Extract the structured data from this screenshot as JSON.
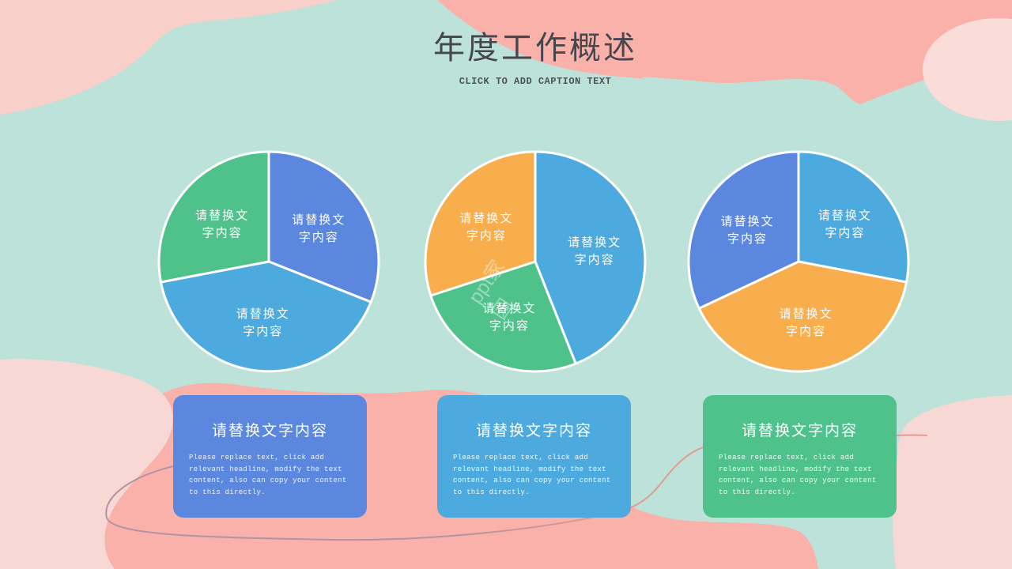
{
  "slide": {
    "title": "年度工作概述",
    "subtitle": "CLICK TO ADD CAPTION TEXT",
    "watermark": "ppt家园"
  },
  "pie_label": "请替换文\n字内容",
  "chart_data": [
    {
      "type": "pie",
      "title": "",
      "legend": "none",
      "start_angle_deg": 0,
      "segments": [
        {
          "label": "请替换文字内容",
          "value": 31,
          "color": "#5B87DE"
        },
        {
          "label": "请替换文字内容",
          "value": 41,
          "color": "#4DAADF"
        },
        {
          "label": "请替换文字内容",
          "value": 28,
          "color": "#4FC28C"
        }
      ]
    },
    {
      "type": "pie",
      "title": "",
      "legend": "none",
      "start_angle_deg": 0,
      "segments": [
        {
          "label": "请替换文字内容",
          "value": 44,
          "color": "#4DAADF"
        },
        {
          "label": "请替换文字内容",
          "value": 26,
          "color": "#4FC28C"
        },
        {
          "label": "请替换文字内容",
          "value": 30,
          "color": "#F9AE4D"
        }
      ]
    },
    {
      "type": "pie",
      "title": "",
      "legend": "none",
      "start_angle_deg": 0,
      "segments": [
        {
          "label": "请替换文字内容",
          "value": 28,
          "color": "#4DAADF"
        },
        {
          "label": "请替换文字内容",
          "value": 40,
          "color": "#F9AE4D"
        },
        {
          "label": "请替换文字内容",
          "value": 32,
          "color": "#5B87DE"
        }
      ]
    }
  ],
  "cards": [
    {
      "title": "请替换文字内容",
      "color": "#5B87DE",
      "body": "Please replace text, click add\nrelevant headline, modify the text\ncontent, also can copy your content\nto this directly."
    },
    {
      "title": "请替换文字内容",
      "color": "#4DAADF",
      "body": "Please replace text, click add\nrelevant headline, modify the text\ncontent, also can copy your content\nto this directly."
    },
    {
      "title": "请替换文字内容",
      "color": "#4FC28C",
      "body": "Please replace text, click add\nrelevant headline, modify the text\ncontent, also can copy your content\nto this directly."
    }
  ],
  "colors": {
    "teal": "#BCE2DA",
    "salmon": "#F9B1A9",
    "pale_pink_topleft": "#F8CFC9",
    "pale_pink_circle": "#FADCD8",
    "pale_pink_bottom": "#F7D8D4",
    "line_mauve": "#B193A3",
    "line_salmon": "#E59A94",
    "pie_stroke": "#FFFFFF"
  }
}
